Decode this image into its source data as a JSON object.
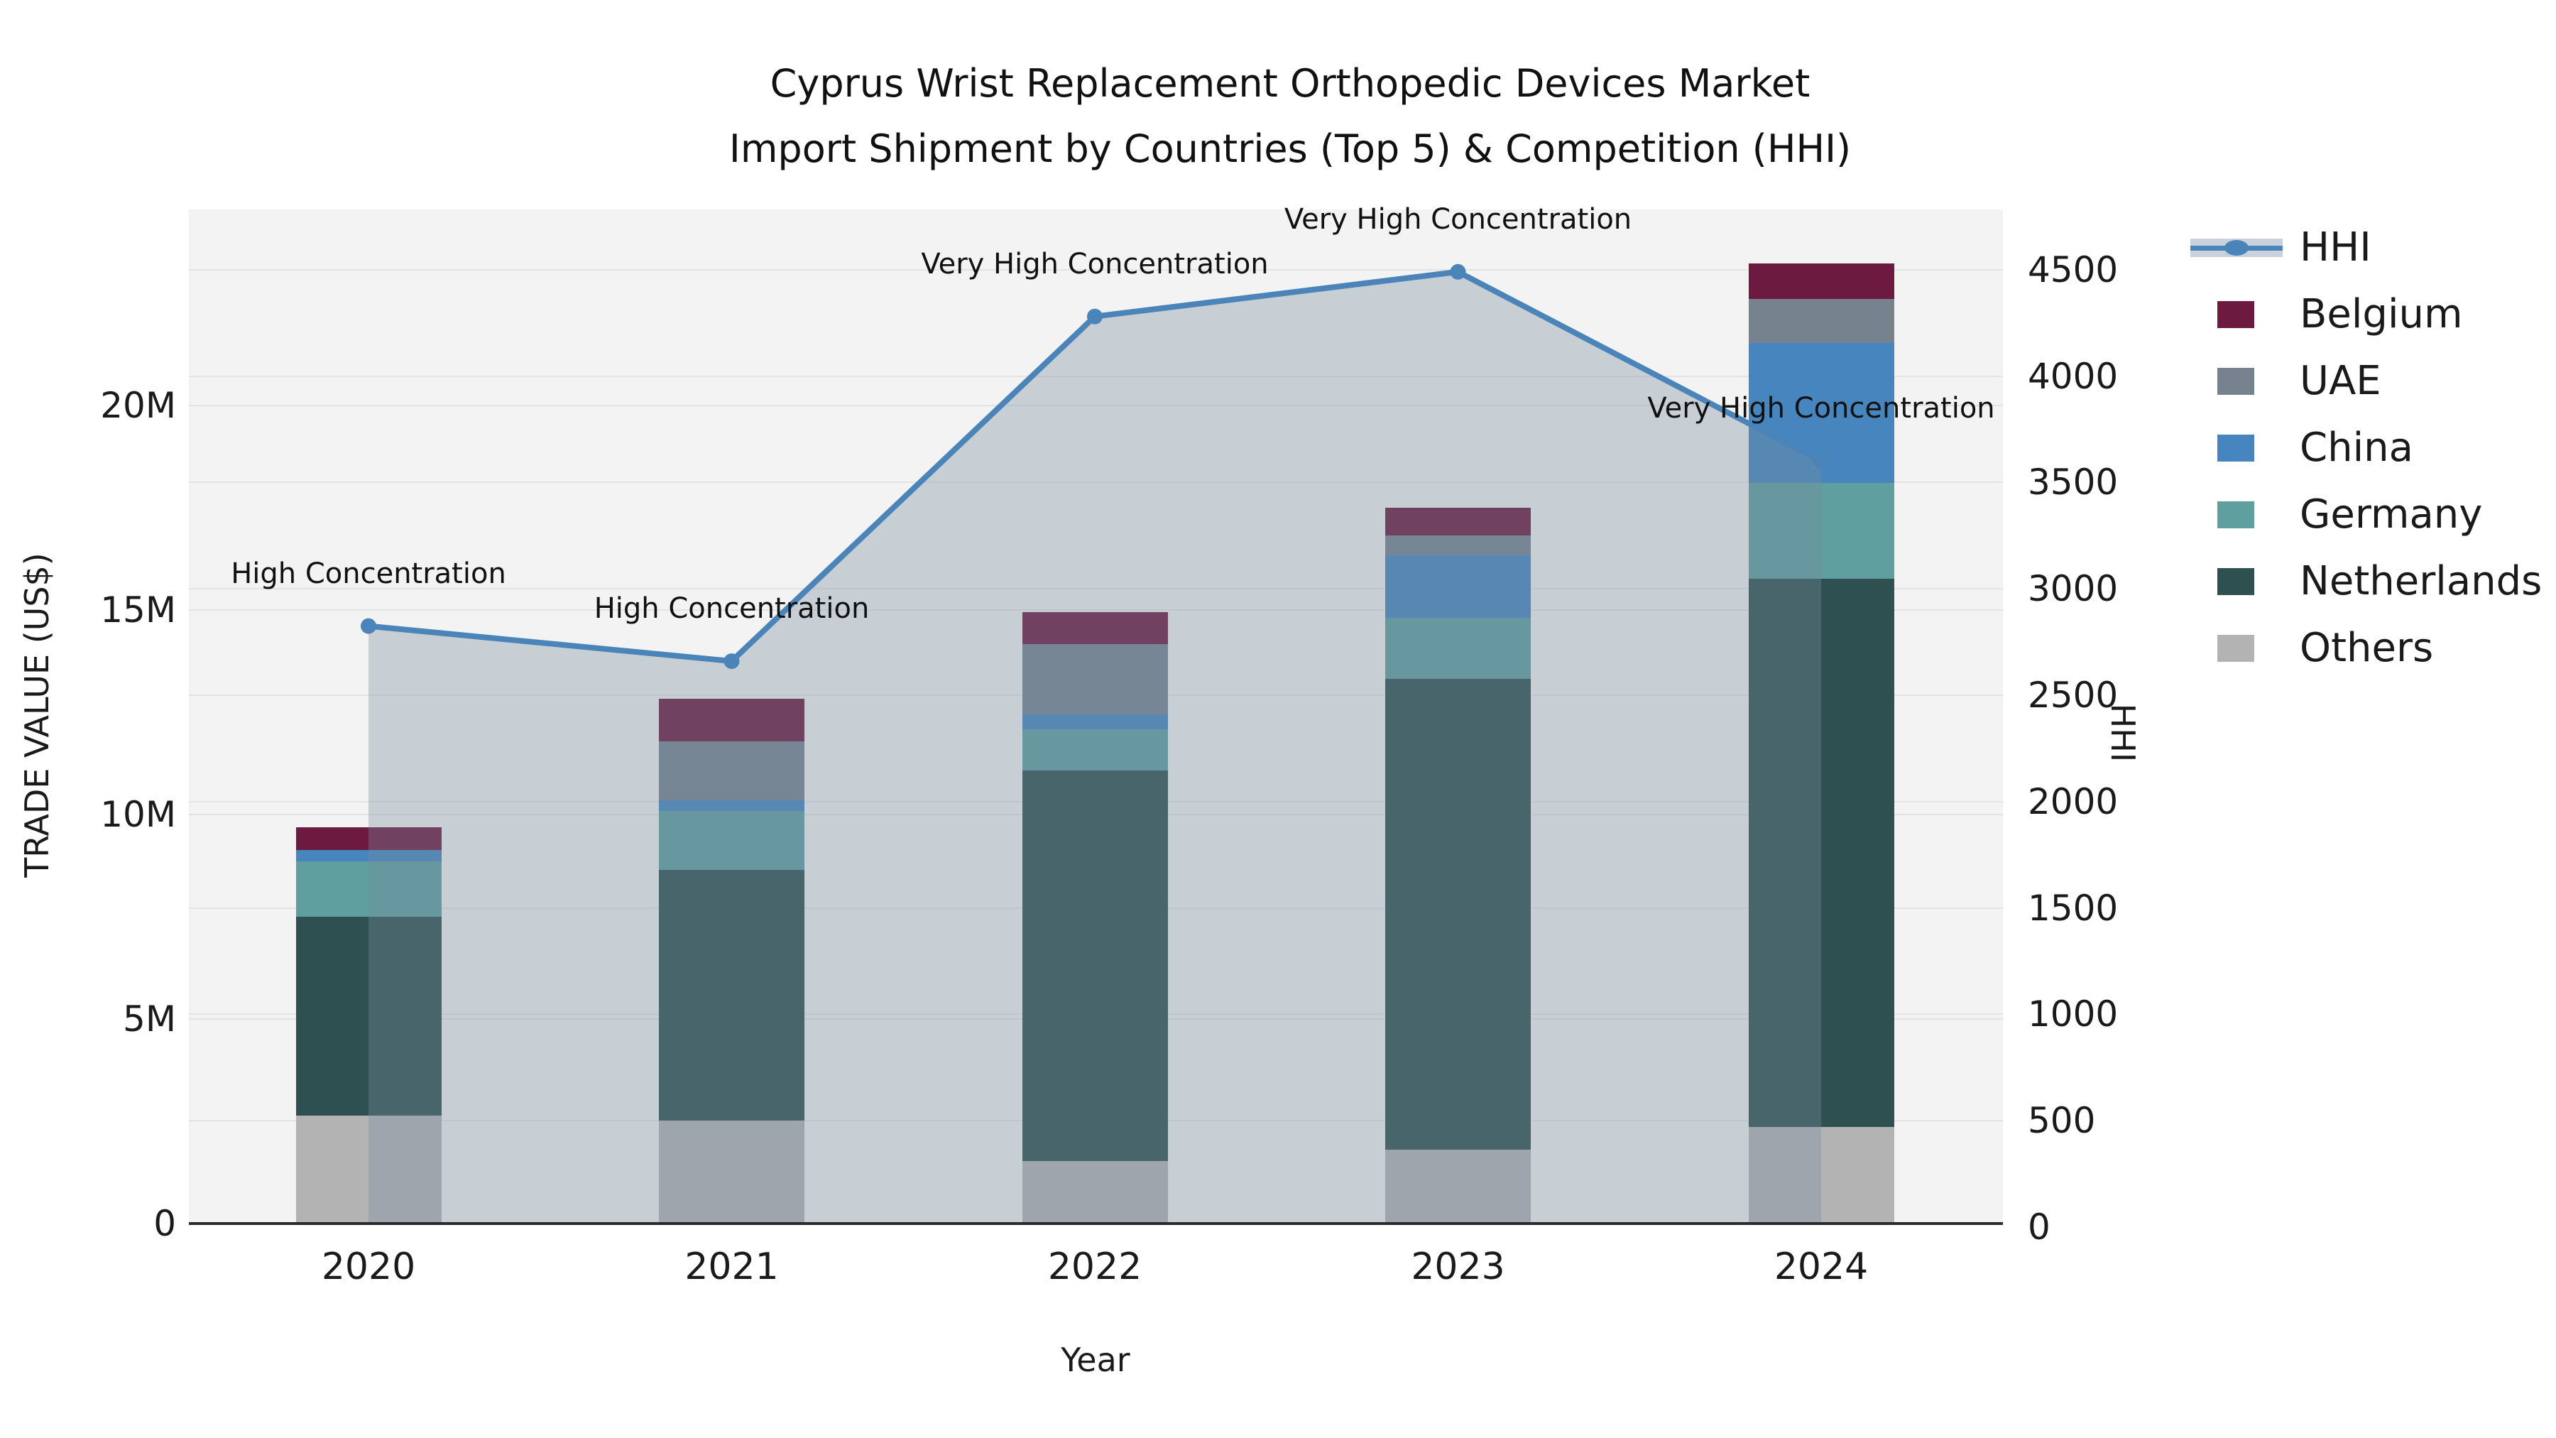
{
  "title": {
    "line1": "Cyprus Wrist Replacement Orthopedic Devices Market",
    "line2": "Import Shipment by Countries (Top 5) & Competition (HHI)"
  },
  "axes": {
    "x_label": "Year",
    "y_left_label": "TRADE VALUE (US$)",
    "y_right_label": "HHI",
    "y_left_ticks": [
      "0",
      "5M",
      "10M",
      "15M",
      "20M"
    ],
    "y_right_ticks": [
      "0",
      "500",
      "1000",
      "1500",
      "2000",
      "2500",
      "3000",
      "3500",
      "4000",
      "4500"
    ]
  },
  "chart_data": {
    "type": "bar+line",
    "title": "Cyprus Wrist Replacement Orthopedic Devices Market Import Shipment by Countries (Top 5) & Competition (HHI)",
    "categories": [
      "2020",
      "2021",
      "2022",
      "2023",
      "2024"
    ],
    "bar_unit": "million US$",
    "stack_order_bottom_to_top": [
      "Others",
      "Netherlands",
      "Germany",
      "China",
      "UAE",
      "Belgium"
    ],
    "series": [
      {
        "name": "Others",
        "color": "#b3b3b3",
        "values": [
          2.64,
          2.52,
          1.52,
          1.8,
          2.36
        ]
      },
      {
        "name": "Netherlands",
        "color": "#2f5050",
        "values": [
          4.86,
          6.12,
          9.55,
          11.51,
          13.41
        ]
      },
      {
        "name": "Germany",
        "color": "#5f9fa0",
        "values": [
          1.35,
          1.45,
          1.02,
          1.5,
          2.34
        ]
      },
      {
        "name": "China",
        "color": "#4685bd",
        "values": [
          0.28,
          0.25,
          0.36,
          1.53,
          3.42
        ]
      },
      {
        "name": "UAE",
        "color": "#76838f",
        "values": [
          0.0,
          1.45,
          1.71,
          0.49,
          1.07
        ]
      },
      {
        "name": "Belgium",
        "color": "#6d1a41",
        "values": [
          0.56,
          1.04,
          0.78,
          0.67,
          0.87
        ]
      }
    ],
    "bar_totals": [
      9.69,
      12.83,
      14.94,
      17.5,
      23.47
    ],
    "line": {
      "name": "HHI",
      "axis": "right",
      "color": "#4a84b8",
      "area_fill": "rgba(120,140,160,0.35)",
      "values": [
        2825,
        2660,
        4280,
        4490,
        3600
      ]
    },
    "annotations": [
      "High Concentration",
      "High Concentration",
      "Very High Concentration",
      "Very High Concentration",
      "Very High Concentration"
    ],
    "xlabel": "Year",
    "ylabel_left": "TRADE VALUE (US$)",
    "ylabel_right": "HHI",
    "ylim_left_millions": [
      0,
      24.8
    ],
    "ylim_right": [
      0,
      4780
    ],
    "grid": true,
    "legend_position": "right"
  },
  "legend": {
    "items": [
      {
        "label": "HHI",
        "type": "line",
        "color": "#4a84b8"
      },
      {
        "label": "Belgium",
        "type": "square",
        "color": "#6d1a41"
      },
      {
        "label": "UAE",
        "type": "square",
        "color": "#76838f"
      },
      {
        "label": "China",
        "type": "square",
        "color": "#4685bd"
      },
      {
        "label": "Germany",
        "type": "square",
        "color": "#5f9fa0"
      },
      {
        "label": "Netherlands",
        "type": "square",
        "color": "#2f5050"
      },
      {
        "label": "Others",
        "type": "square",
        "color": "#b3b3b3"
      }
    ]
  },
  "colors": {
    "plot_background": "#f2f3f2",
    "gridline": "#e3e3e3",
    "axis_line": "#2b2b2b",
    "text": "#1a1a1a"
  }
}
